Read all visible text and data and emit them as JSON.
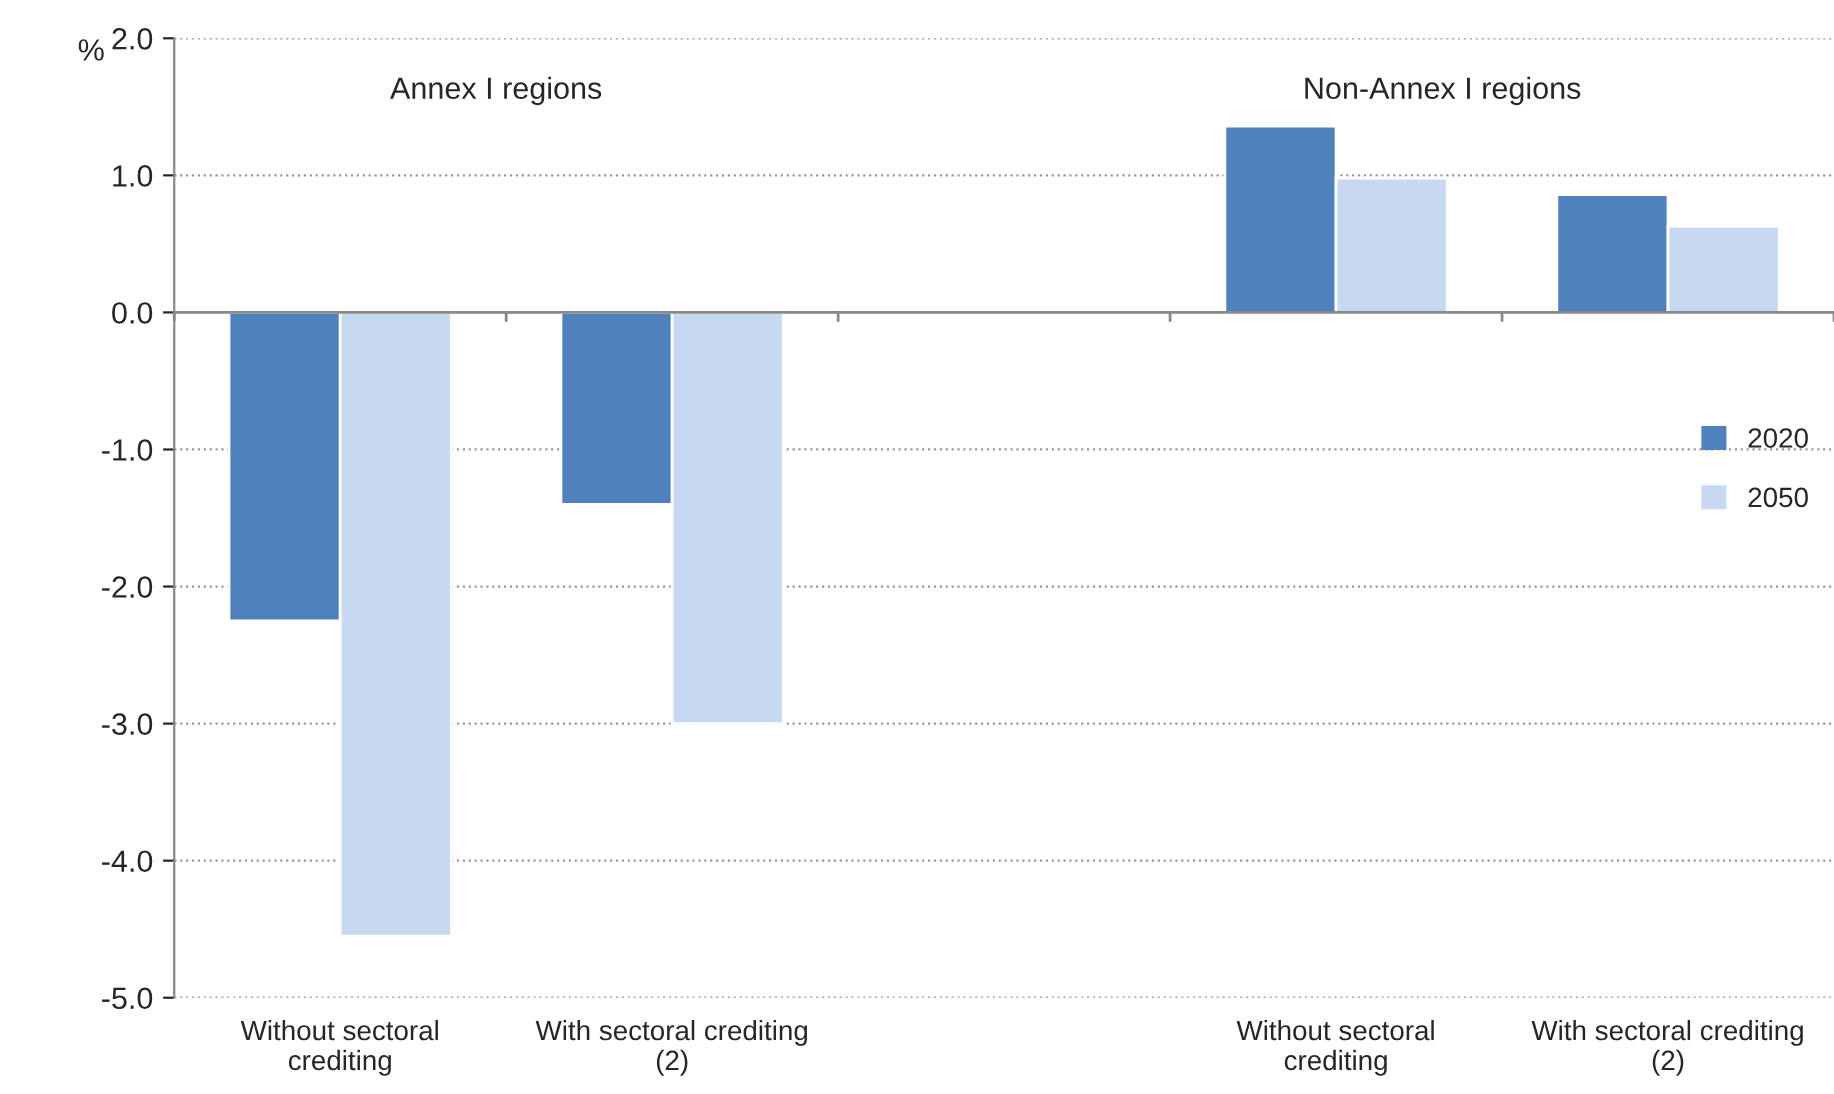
{
  "chart_data": {
    "type": "bar",
    "ylabel": "%",
    "categories": [
      "Without sectoral\ncrediting",
      "With sectoral crediting\n(2)",
      null,
      "Without sectoral\ncrediting",
      "With sectoral crediting\n(2)"
    ],
    "series": [
      {
        "name": "2020",
        "color": "#4f81bd",
        "values": [
          -2.25,
          -1.4,
          null,
          1.36,
          0.86
        ]
      },
      {
        "name": "2050",
        "color": "#c6d9f0",
        "values": [
          -4.55,
          -3.0,
          null,
          0.98,
          0.63
        ]
      }
    ],
    "ylim": [
      -5,
      2
    ],
    "yticks": [
      {
        "value": -5,
        "label": "-5.0"
      },
      {
        "value": -4,
        "label": "-4.0"
      },
      {
        "value": -3,
        "label": "-3.0"
      },
      {
        "value": -2,
        "label": "-2.0"
      },
      {
        "value": -1,
        "label": "-1.0"
      },
      {
        "value": 0,
        "label": "0.0"
      },
      {
        "value": 1,
        "label": "1.0"
      },
      {
        "value": 2,
        "label": "2.0"
      }
    ],
    "grid": "y",
    "legend": "right",
    "annotations": [
      "Annex I regions",
      "Non-Annex I regions"
    ]
  }
}
